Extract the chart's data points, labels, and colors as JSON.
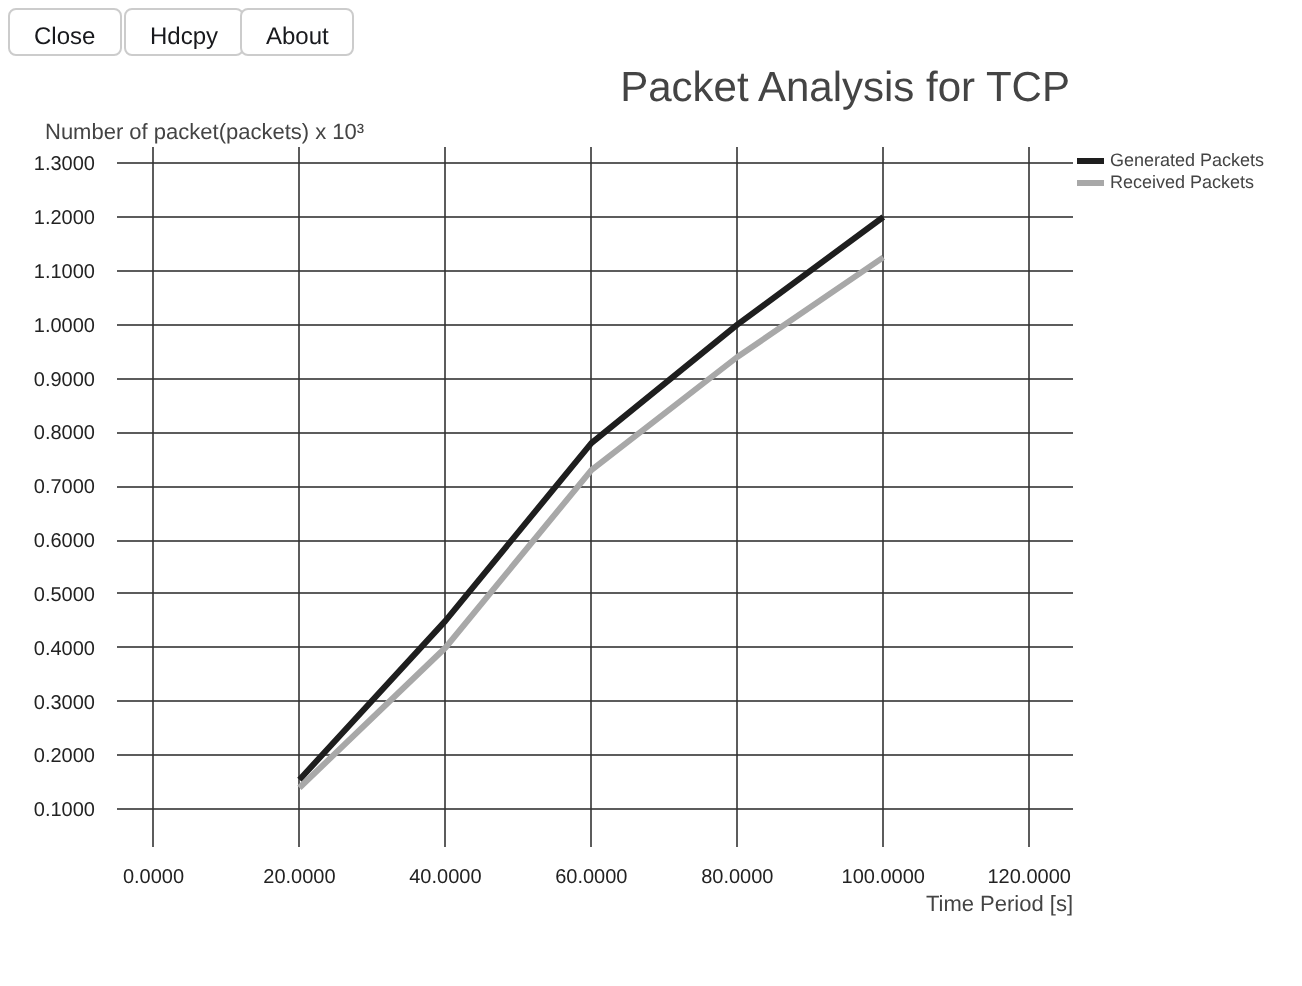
{
  "chart_data": {
    "type": "line",
    "title": "Packet Analysis for TCP",
    "xlabel": "Time Period [s]",
    "ylabel": "Number of packet(packets) x 10³",
    "annotations": [
      "Close",
      "Hdcpy",
      "About"
    ],
    "x": [
      20,
      40,
      60,
      80,
      100
    ],
    "series": [
      {
        "name": "Generated Packets",
        "color": "#1e1e1e",
        "values": [
          0.155,
          0.45,
          0.78,
          1.0,
          1.2
        ]
      },
      {
        "name": "Received Packets",
        "color": "#a8a8a8",
        "values": [
          0.14,
          0.4,
          0.73,
          0.94,
          1.125
        ]
      }
    ],
    "xlim": [
      -5,
      126
    ],
    "ylim": [
      0.03,
      1.33
    ],
    "xticks": [
      {
        "value": 0,
        "label": "0.0000"
      },
      {
        "value": 20,
        "label": "20.0000"
      },
      {
        "value": 40,
        "label": "40.0000"
      },
      {
        "value": 60,
        "label": "60.0000"
      },
      {
        "value": 80,
        "label": "80.0000"
      },
      {
        "value": 100,
        "label": "100.0000"
      },
      {
        "value": 120,
        "label": "120.0000"
      }
    ],
    "yticks": [
      {
        "value": 0.1,
        "label": "0.1000"
      },
      {
        "value": 0.2,
        "label": "0.2000"
      },
      {
        "value": 0.3,
        "label": "0.3000"
      },
      {
        "value": 0.4,
        "label": "0.4000"
      },
      {
        "value": 0.5,
        "label": "0.5000"
      },
      {
        "value": 0.6,
        "label": "0.6000"
      },
      {
        "value": 0.7,
        "label": "0.7000"
      },
      {
        "value": 0.8,
        "label": "0.8000"
      },
      {
        "value": 0.9,
        "label": "0.9000"
      },
      {
        "value": 1.0,
        "label": "1.0000"
      },
      {
        "value": 1.1,
        "label": "1.1000"
      },
      {
        "value": 1.2,
        "label": "1.2000"
      },
      {
        "value": 1.3,
        "label": "1.3000"
      }
    ],
    "grid": true,
    "legend": "top right",
    "line_style": "solid"
  }
}
